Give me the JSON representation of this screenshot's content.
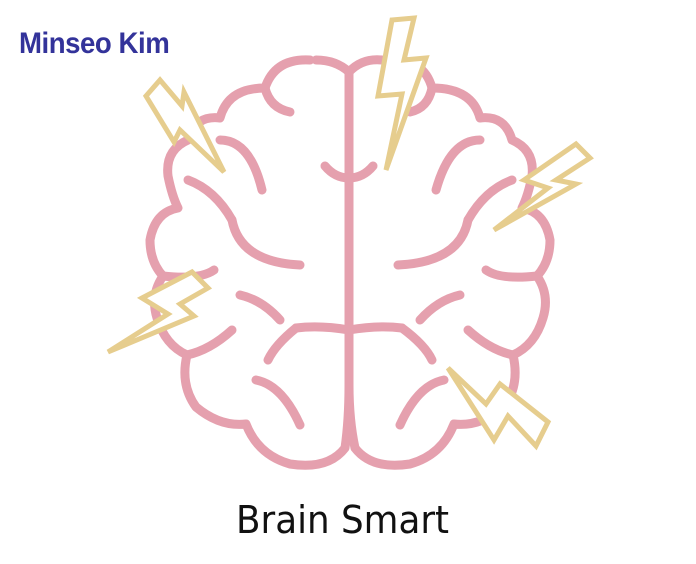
{
  "author": "Minseo Kim",
  "caption": "Brain Smart",
  "colors": {
    "author_text": "#33339a",
    "caption_text": "#111111",
    "brain_stroke": "#e5a0ae",
    "bolt_stroke": "#e6cd8e",
    "background": "#ffffff"
  },
  "icons": [
    "brain-icon",
    "lightning-bolt-icon"
  ]
}
